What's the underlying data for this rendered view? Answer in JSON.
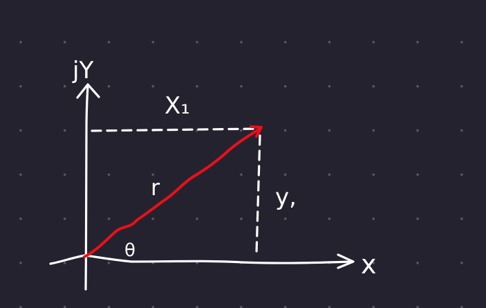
{
  "diagram": {
    "labels": {
      "y_axis": "jY",
      "x_axis": "x",
      "x_component": "X₁",
      "y_component": "y,",
      "magnitude": "r",
      "angle": "θ"
    },
    "colors": {
      "background": "#25222f",
      "grid_dot": "#5a5866",
      "ink": "#ffffff",
      "vector": "#e8101a"
    }
  }
}
